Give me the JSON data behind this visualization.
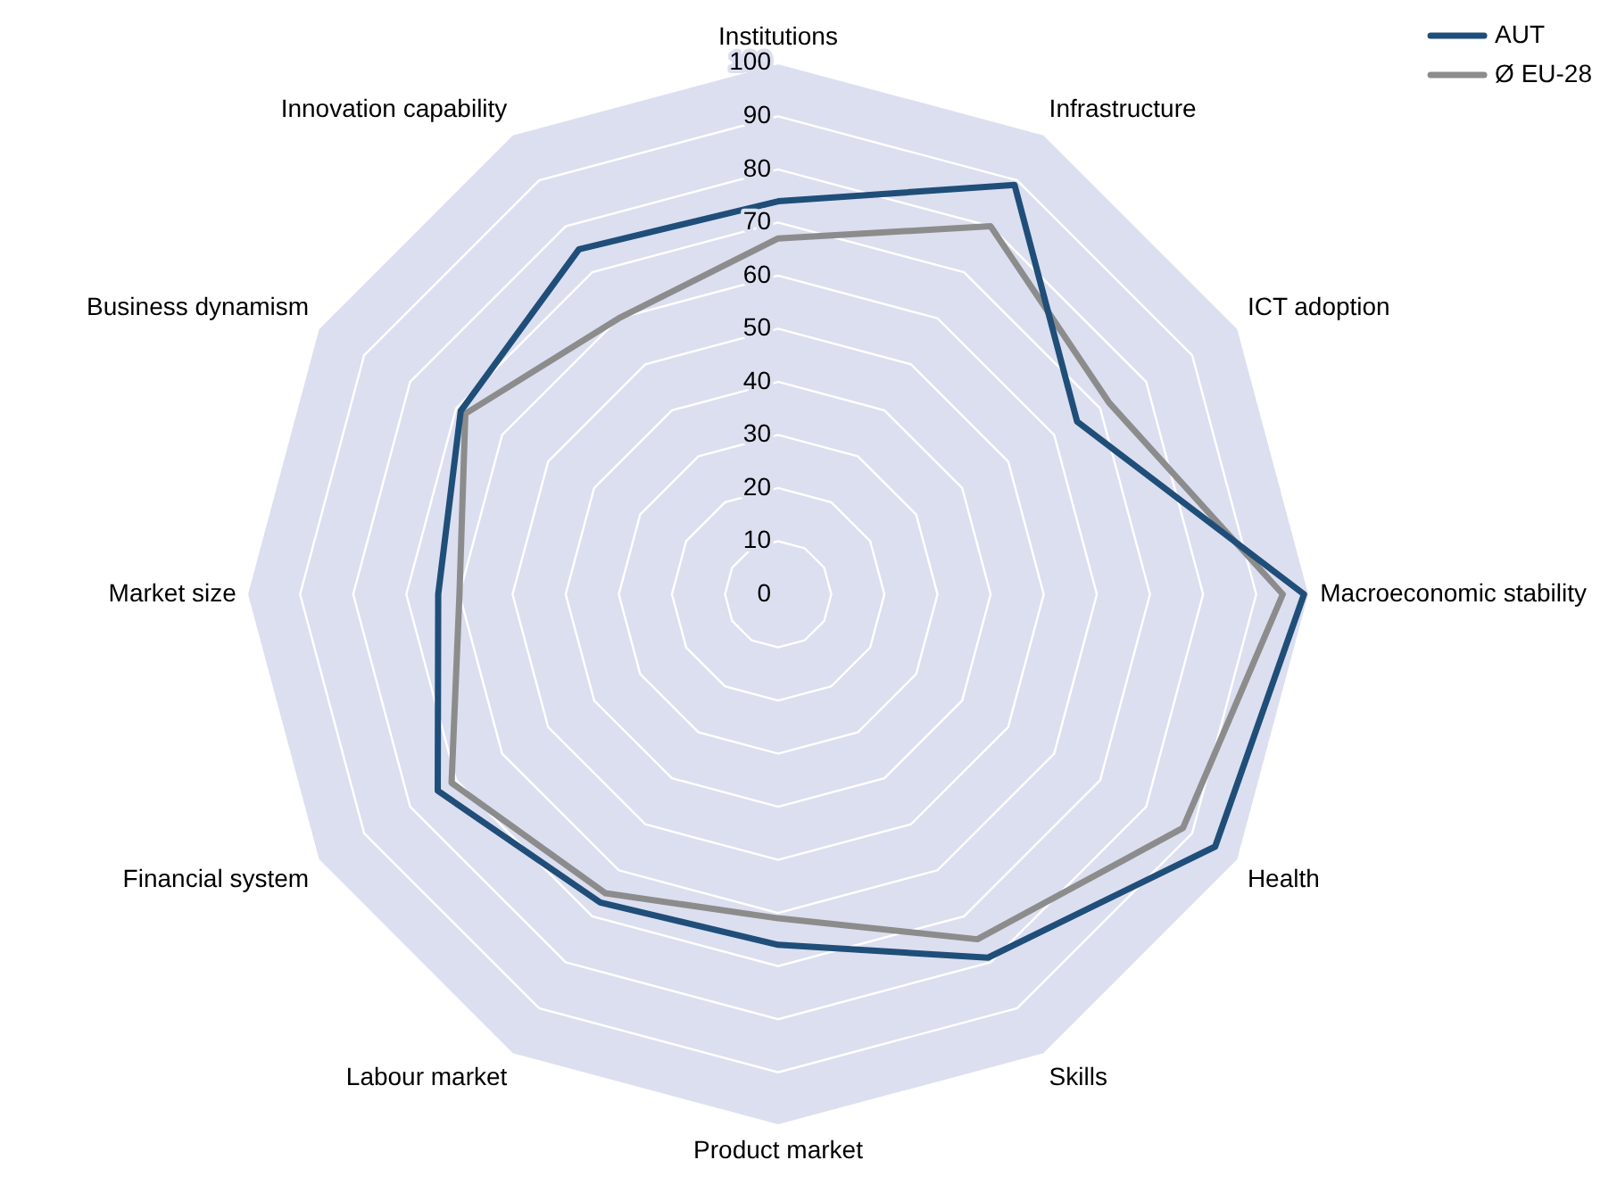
{
  "chart_data": {
    "type": "radar",
    "categories": [
      "Institutions",
      "Infrastructure",
      "ICT adoption",
      "Macroeconomic stability",
      "Health",
      "Skills",
      "Product market",
      "Labour market",
      "Financial system",
      "Market size",
      "Business dynamism",
      "Innovation capability"
    ],
    "series": [
      {
        "name": "AUT",
        "color": "#1f4e79",
        "values": [
          74,
          89,
          65,
          99,
          95,
          79,
          66,
          67,
          74,
          64,
          69,
          75
        ]
      },
      {
        "name": "Ø EU-28",
        "color": "#8c8c8c",
        "values": [
          67,
          80,
          72,
          95,
          88,
          75,
          61,
          65,
          71,
          60,
          68,
          60
        ]
      }
    ],
    "ylim": [
      0,
      100
    ],
    "yticks": [
      0,
      10,
      20,
      30,
      40,
      50,
      60,
      70,
      80,
      90,
      100
    ],
    "grid": true,
    "legend": "top right",
    "marker": "none"
  }
}
